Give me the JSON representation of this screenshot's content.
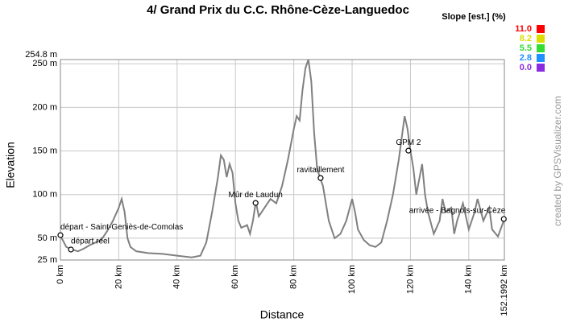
{
  "chart_data": {
    "type": "line",
    "title": "4/ Grand Prix du C.C. Rhône-Cèze-Languedoc",
    "x_label": "Distance",
    "y_label": "Elevation",
    "credit": "created by GPSVisualizer.com",
    "legend": {
      "title": "Slope [est.] (%)",
      "position": "top-right",
      "items": [
        {
          "label": "11.0",
          "color": "#ff0000"
        },
        {
          "label": "8.2",
          "color": "#dddd00"
        },
        {
          "label": "5.5",
          "color": "#33dd33"
        },
        {
          "label": "2.8",
          "color": "#1e90ff"
        },
        {
          "label": "0.0",
          "color": "#8a2be2"
        }
      ]
    },
    "grid": true,
    "xlim": [
      0,
      152.1992
    ],
    "ylim": [
      25,
      254.8
    ],
    "xticks": [
      {
        "value": 0,
        "label": "0 km"
      },
      {
        "value": 20,
        "label": "20 km"
      },
      {
        "value": 40,
        "label": "40 km"
      },
      {
        "value": 60,
        "label": "60 km"
      },
      {
        "value": 80,
        "label": "80 km"
      },
      {
        "value": 100,
        "label": "100 km"
      },
      {
        "value": 120,
        "label": "120 km"
      },
      {
        "value": 140,
        "label": "140 km"
      },
      {
        "value": 152.1992,
        "label": "152.1992 km"
      }
    ],
    "yticks": [
      {
        "value": 25,
        "label": "25 m"
      },
      {
        "value": 50,
        "label": "50 m"
      },
      {
        "value": 100,
        "label": "100 m"
      },
      {
        "value": 150,
        "label": "150 m"
      },
      {
        "value": 200,
        "label": "200 m"
      },
      {
        "value": 250,
        "label": "250 m"
      },
      {
        "value": 254.8,
        "label": "254.8 m"
      }
    ],
    "series": [
      {
        "name": "Elevation",
        "color": "#808080",
        "x": [
          0,
          2,
          4,
          6,
          8,
          10,
          12,
          14,
          16,
          18,
          20,
          21,
          22,
          23,
          24,
          26,
          30,
          35,
          40,
          45,
          48,
          50,
          52,
          54,
          55,
          56,
          57,
          58,
          59,
          60,
          61,
          62,
          64,
          65,
          66,
          67,
          68,
          70,
          72,
          74,
          76,
          78,
          80,
          81,
          82,
          83,
          84,
          85,
          86,
          87,
          88,
          89,
          90,
          92,
          94,
          96,
          98,
          100,
          101,
          102,
          104,
          106,
          108,
          110,
          112,
          114,
          116,
          118,
          119,
          120,
          121,
          122,
          124,
          125,
          126,
          128,
          130,
          131,
          132,
          134,
          135,
          136,
          138,
          140,
          142,
          143,
          145,
          147,
          148,
          150,
          152.1992
        ],
        "values": [
          53,
          40,
          37,
          35,
          38,
          42,
          45,
          48,
          58,
          70,
          85,
          95,
          80,
          50,
          40,
          35,
          33,
          32,
          30,
          28,
          30,
          45,
          80,
          120,
          145,
          140,
          120,
          135,
          125,
          90,
          70,
          62,
          65,
          55,
          70,
          92,
          75,
          85,
          95,
          90,
          110,
          140,
          175,
          190,
          185,
          220,
          245,
          254.8,
          230,
          170,
          130,
          119,
          110,
          70,
          50,
          55,
          70,
          95,
          80,
          60,
          48,
          42,
          40,
          45,
          70,
          100,
          140,
          190,
          175,
          150,
          130,
          100,
          135,
          100,
          80,
          55,
          70,
          95,
          80,
          85,
          55,
          70,
          90,
          60,
          80,
          95,
          70,
          85,
          60,
          52,
          72
        ]
      }
    ],
    "waypoints": [
      {
        "label": "départ - Saint-Geniès-de-Comolas",
        "x": 0,
        "y": 53.5
      },
      {
        "label": "départ réel",
        "x": 3.6,
        "y": 37
      },
      {
        "label": "Mûr de Laudun",
        "x": 66.9,
        "y": 90.4
      },
      {
        "label": "ravitaillement",
        "x": 89.2,
        "y": 119
      },
      {
        "label": "GPM 2",
        "x": 119.3,
        "y": 150.4
      },
      {
        "label": "arrivée - Bagnols-sur-Cèze",
        "x": 152,
        "y": 72
      }
    ]
  }
}
